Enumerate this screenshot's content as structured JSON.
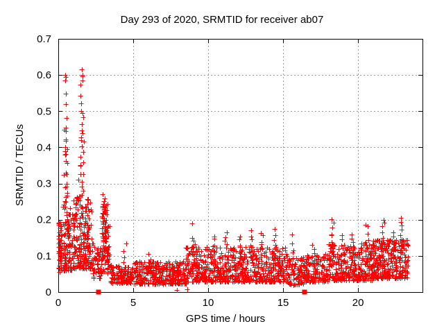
{
  "chart_data": {
    "type": "scatter",
    "title": "Day 293 of 2020, SRMTID for receiver ab07",
    "xlabel": "GPS time / hours",
    "ylabel": "SRMTID / TECUs",
    "xlim": [
      0,
      24.3
    ],
    "ylim": [
      0,
      0.7
    ],
    "xticks": {
      "values": [
        0,
        5,
        10,
        15,
        20
      ],
      "labels": [
        "0",
        "5",
        "10",
        "15",
        "20"
      ]
    },
    "yticks": {
      "values": [
        0,
        0.1,
        0.2,
        0.3,
        0.4,
        0.5,
        0.6,
        0.7
      ],
      "labels": [
        "0",
        "0.1",
        "0.2",
        "0.3",
        "0.4",
        "0.5",
        "0.6",
        "0.7"
      ]
    },
    "grid": true,
    "legend": "none",
    "marker": "plus",
    "marker_color": "#ff0000",
    "grid_color": "#999999",
    "border_color": "#000000",
    "flagged_points": {
      "name": "axis-marker-squares",
      "marker": "filled-square",
      "color": "#ff0000",
      "points": [
        [
          2.7,
          0
        ],
        [
          16.42,
          0
        ]
      ]
    },
    "outlier_points": [
      [
        0.05,
        0.19
      ],
      [
        0.08,
        0.165
      ],
      [
        0.47,
        0.6
      ],
      [
        0.52,
        0.595
      ],
      [
        0.5,
        0.52
      ],
      [
        0.53,
        0.455
      ],
      [
        0.45,
        0.4
      ],
      [
        0.6,
        0.395
      ],
      [
        0.47,
        0.38
      ],
      [
        0.52,
        0.33
      ],
      [
        0.56,
        0.3
      ],
      [
        0.62,
        0.275
      ],
      [
        1.56,
        0.615
      ],
      [
        1.6,
        0.6
      ],
      [
        1.63,
        0.585
      ],
      [
        1.55,
        0.5
      ],
      [
        1.6,
        0.44
      ],
      [
        1.55,
        0.42
      ],
      [
        1.5,
        0.35
      ],
      [
        1.35,
        0.31
      ],
      [
        1.66,
        0.28
      ],
      [
        2.95,
        0.27
      ],
      [
        8.95,
        0.19
      ],
      [
        8.95,
        0.15
      ],
      [
        7.9,
        0.006
      ],
      [
        8.6,
        0.008
      ],
      [
        22.85,
        0.205
      ],
      [
        22.9,
        0.185
      ]
    ],
    "spike_streaks": [
      [
        0.47,
        0.2,
        0.58,
        13
      ],
      [
        0.55,
        0.17,
        0.45,
        10
      ],
      [
        1.56,
        0.21,
        0.6,
        15
      ],
      [
        1.63,
        0.18,
        0.48,
        11
      ],
      [
        1.9,
        0.1,
        0.24,
        8
      ],
      [
        2.05,
        0.08,
        0.2,
        6
      ],
      [
        3.05,
        0.1,
        0.265,
        14
      ],
      [
        3.2,
        0.07,
        0.22,
        10
      ],
      [
        4.45,
        0.055,
        0.13,
        6
      ],
      [
        6.1,
        0.05,
        0.1,
        5
      ],
      [
        9.05,
        0.08,
        0.145,
        7
      ],
      [
        10.35,
        0.08,
        0.155,
        8
      ],
      [
        11.2,
        0.08,
        0.165,
        8
      ],
      [
        12.15,
        0.08,
        0.155,
        8
      ],
      [
        12.9,
        0.08,
        0.17,
        8
      ],
      [
        13.6,
        0.08,
        0.165,
        8
      ],
      [
        14.45,
        0.08,
        0.17,
        8
      ],
      [
        15.6,
        0.07,
        0.155,
        6
      ],
      [
        17.0,
        0.065,
        0.135,
        6
      ],
      [
        18.3,
        0.09,
        0.2,
        10
      ],
      [
        19.0,
        0.08,
        0.155,
        7
      ],
      [
        19.6,
        0.08,
        0.165,
        7
      ],
      [
        20.6,
        0.09,
        0.19,
        8
      ],
      [
        21.7,
        0.09,
        0.205,
        9
      ],
      [
        22.4,
        0.09,
        0.17,
        7
      ],
      [
        22.9,
        0.1,
        0.19,
        7
      ]
    ],
    "noise_bands": [
      [
        0.03,
        0.22,
        48,
        0.055,
        0.195,
        1.0
      ],
      [
        0.32,
        1.1,
        115,
        0.06,
        0.255,
        1.6
      ],
      [
        1.1,
        2.3,
        165,
        0.065,
        0.265,
        1.5
      ],
      [
        2.3,
        2.85,
        42,
        0.035,
        0.125,
        1.4
      ],
      [
        2.85,
        3.45,
        85,
        0.05,
        0.255,
        1.3
      ],
      [
        3.45,
        5.0,
        115,
        0.025,
        0.075,
        1.3
      ],
      [
        5.0,
        8.5,
        300,
        0.022,
        0.085,
        1.4
      ],
      [
        8.5,
        15.3,
        610,
        0.028,
        0.125,
        1.7
      ],
      [
        15.3,
        16.4,
        85,
        0.02,
        0.1,
        1.5
      ],
      [
        16.4,
        18.0,
        145,
        0.028,
        0.105,
        1.5
      ],
      [
        18.0,
        21.0,
        290,
        0.032,
        0.135,
        1.6
      ],
      [
        21.0,
        23.35,
        265,
        0.038,
        0.148,
        1.6
      ]
    ],
    "seed": 293
  }
}
